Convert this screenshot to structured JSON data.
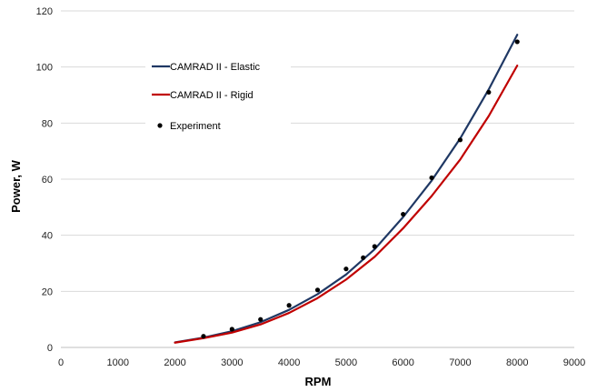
{
  "chart_data": {
    "type": "line",
    "xlabel": "RPM",
    "ylabel": "Power, W",
    "xlim": [
      0,
      9000
    ],
    "ylim": [
      0,
      120
    ],
    "xticks": [
      0,
      1000,
      2000,
      3000,
      4000,
      5000,
      6000,
      7000,
      8000,
      9000
    ],
    "yticks": [
      0,
      20,
      40,
      60,
      80,
      100,
      120
    ],
    "grid": "horizontal",
    "legend": "upper-left inside",
    "series": [
      {
        "name": "CAMRAD II - Elastic",
        "kind": "line",
        "color": "#1f3864",
        "x": [
          2000,
          2500,
          3000,
          3500,
          4000,
          4500,
          5000,
          5500,
          6000,
          6500,
          7000,
          7500,
          8000
        ],
        "y": [
          1.8,
          3.5,
          5.8,
          9.0,
          13.4,
          19.0,
          26.0,
          35.0,
          46.5,
          59.5,
          74.5,
          92.0,
          111.5
        ]
      },
      {
        "name": "CAMRAD II - Rigid",
        "kind": "line",
        "color": "#c00000",
        "x": [
          2000,
          2500,
          3000,
          3500,
          4000,
          4500,
          5000,
          5500,
          6000,
          6500,
          7000,
          7500,
          8000
        ],
        "y": [
          1.7,
          3.3,
          5.3,
          8.2,
          12.3,
          17.6,
          24.2,
          32.3,
          42.5,
          54.0,
          67.0,
          82.5,
          100.5
        ]
      },
      {
        "name": "Experiment",
        "kind": "scatter",
        "color": "#000000",
        "x": [
          2500,
          3000,
          3500,
          4000,
          4500,
          5000,
          5300,
          5500,
          6000,
          6500,
          7000,
          7500,
          8000
        ],
        "y": [
          4.0,
          6.5,
          10.0,
          15.0,
          20.5,
          28.0,
          32.0,
          36.0,
          47.5,
          60.5,
          74.0,
          91.0,
          109.0
        ]
      }
    ]
  }
}
